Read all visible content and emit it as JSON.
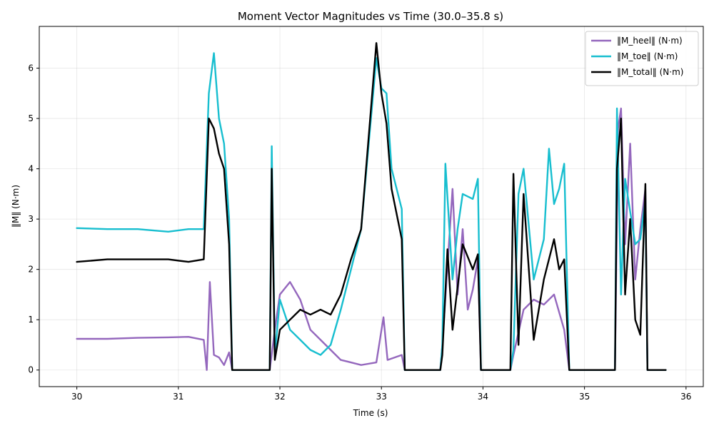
{
  "chart_data": {
    "type": "line",
    "title": "Moment Vector Magnitudes vs Time (30.0–35.8 s)",
    "xlabel": "Time (s)",
    "ylabel": "‖M‖ (N·m)",
    "xlim": [
      29.63,
      36.17
    ],
    "ylim": [
      -0.33,
      6.83
    ],
    "xticks": [
      30,
      31,
      32,
      33,
      34,
      35,
      36
    ],
    "yticks": [
      0,
      1,
      2,
      3,
      4,
      5,
      6
    ],
    "grid": true,
    "legend_position": "top-right",
    "series": [
      {
        "name": "‖M_heel‖ (N·m)",
        "color": "#9467bd",
        "points": [
          [
            30.0,
            0.62
          ],
          [
            30.3,
            0.62
          ],
          [
            30.6,
            0.64
          ],
          [
            30.9,
            0.65
          ],
          [
            31.1,
            0.66
          ],
          [
            31.25,
            0.6
          ],
          [
            31.28,
            0.0
          ],
          [
            31.31,
            1.75
          ],
          [
            31.35,
            0.3
          ],
          [
            31.4,
            0.25
          ],
          [
            31.45,
            0.1
          ],
          [
            31.5,
            0.35
          ],
          [
            31.53,
            0.0
          ],
          [
            31.9,
            0.0
          ],
          [
            31.95,
            0.8
          ],
          [
            32.0,
            1.5
          ],
          [
            32.1,
            1.75
          ],
          [
            32.2,
            1.4
          ],
          [
            32.3,
            0.8
          ],
          [
            32.4,
            0.6
          ],
          [
            32.5,
            0.4
          ],
          [
            32.6,
            0.2
          ],
          [
            32.7,
            0.15
          ],
          [
            32.8,
            0.1
          ],
          [
            32.95,
            0.15
          ],
          [
            33.02,
            1.05
          ],
          [
            33.06,
            0.2
          ],
          [
            33.2,
            0.3
          ],
          [
            33.23,
            0.0
          ],
          [
            33.58,
            0.0
          ],
          [
            33.6,
            0.5
          ],
          [
            33.7,
            3.6
          ],
          [
            33.75,
            1.5
          ],
          [
            33.8,
            2.8
          ],
          [
            33.85,
            1.2
          ],
          [
            33.9,
            1.6
          ],
          [
            33.95,
            2.2
          ],
          [
            33.98,
            0.0
          ],
          [
            34.27,
            0.0
          ],
          [
            34.3,
            0.3
          ],
          [
            34.4,
            1.2
          ],
          [
            34.5,
            1.4
          ],
          [
            34.6,
            1.3
          ],
          [
            34.7,
            1.5
          ],
          [
            34.8,
            0.8
          ],
          [
            34.85,
            0.0
          ],
          [
            35.3,
            0.0
          ],
          [
            35.33,
            4.8
          ],
          [
            35.36,
            5.2
          ],
          [
            35.4,
            2.5
          ],
          [
            35.45,
            4.5
          ],
          [
            35.5,
            1.8
          ],
          [
            35.55,
            2.8
          ],
          [
            35.6,
            3.6
          ],
          [
            35.62,
            0.0
          ],
          [
            35.8,
            0.0
          ]
        ]
      },
      {
        "name": "‖M_toe‖ (N·m)",
        "color": "#17becf",
        "points": [
          [
            30.0,
            2.82
          ],
          [
            30.3,
            2.8
          ],
          [
            30.6,
            2.8
          ],
          [
            30.9,
            2.75
          ],
          [
            31.1,
            2.8
          ],
          [
            31.25,
            2.8
          ],
          [
            31.3,
            5.5
          ],
          [
            31.35,
            6.3
          ],
          [
            31.4,
            5.0
          ],
          [
            31.45,
            4.5
          ],
          [
            31.5,
            3.0
          ],
          [
            31.53,
            0.0
          ],
          [
            31.9,
            0.0
          ],
          [
            31.92,
            4.45
          ],
          [
            31.95,
            0.3
          ],
          [
            32.0,
            1.4
          ],
          [
            32.1,
            0.8
          ],
          [
            32.2,
            0.6
          ],
          [
            32.3,
            0.4
          ],
          [
            32.4,
            0.3
          ],
          [
            32.5,
            0.5
          ],
          [
            32.6,
            1.2
          ],
          [
            32.7,
            2.0
          ],
          [
            32.8,
            2.8
          ],
          [
            32.95,
            6.2
          ],
          [
            33.0,
            5.6
          ],
          [
            33.05,
            5.5
          ],
          [
            33.1,
            4.0
          ],
          [
            33.2,
            3.2
          ],
          [
            33.23,
            0.0
          ],
          [
            33.58,
            0.0
          ],
          [
            33.6,
            0.5
          ],
          [
            33.63,
            4.1
          ],
          [
            33.7,
            1.8
          ],
          [
            33.75,
            2.8
          ],
          [
            33.8,
            3.5
          ],
          [
            33.9,
            3.4
          ],
          [
            33.95,
            3.8
          ],
          [
            33.98,
            0.0
          ],
          [
            34.27,
            0.0
          ],
          [
            34.3,
            0.4
          ],
          [
            34.35,
            3.5
          ],
          [
            34.4,
            4.0
          ],
          [
            34.5,
            1.8
          ],
          [
            34.6,
            2.6
          ],
          [
            34.65,
            4.4
          ],
          [
            34.7,
            3.3
          ],
          [
            34.75,
            3.6
          ],
          [
            34.8,
            4.1
          ],
          [
            34.85,
            0.0
          ],
          [
            35.3,
            0.0
          ],
          [
            35.32,
            5.2
          ],
          [
            35.36,
            1.5
          ],
          [
            35.4,
            3.8
          ],
          [
            35.5,
            2.5
          ],
          [
            35.55,
            2.6
          ],
          [
            35.6,
            3.4
          ],
          [
            35.62,
            0.0
          ],
          [
            35.8,
            0.0
          ]
        ]
      },
      {
        "name": "‖M_total‖ (N·m)",
        "color": "#000000",
        "points": [
          [
            30.0,
            2.15
          ],
          [
            30.3,
            2.2
          ],
          [
            30.6,
            2.2
          ],
          [
            30.9,
            2.2
          ],
          [
            31.1,
            2.15
          ],
          [
            31.25,
            2.2
          ],
          [
            31.3,
            5.0
          ],
          [
            31.35,
            4.8
          ],
          [
            31.4,
            4.3
          ],
          [
            31.45,
            4.0
          ],
          [
            31.5,
            2.5
          ],
          [
            31.53,
            0.0
          ],
          [
            31.9,
            0.0
          ],
          [
            31.92,
            4.0
          ],
          [
            31.95,
            0.2
          ],
          [
            32.0,
            0.8
          ],
          [
            32.1,
            1.0
          ],
          [
            32.2,
            1.2
          ],
          [
            32.3,
            1.1
          ],
          [
            32.4,
            1.2
          ],
          [
            32.5,
            1.1
          ],
          [
            32.6,
            1.5
          ],
          [
            32.7,
            2.2
          ],
          [
            32.8,
            2.8
          ],
          [
            32.95,
            6.5
          ],
          [
            33.0,
            5.5
          ],
          [
            33.05,
            4.9
          ],
          [
            33.1,
            3.6
          ],
          [
            33.2,
            2.6
          ],
          [
            33.23,
            0.0
          ],
          [
            33.58,
            0.0
          ],
          [
            33.6,
            0.3
          ],
          [
            33.65,
            2.4
          ],
          [
            33.7,
            0.8
          ],
          [
            33.8,
            2.5
          ],
          [
            33.9,
            2.0
          ],
          [
            33.95,
            2.3
          ],
          [
            33.98,
            0.0
          ],
          [
            34.27,
            0.0
          ],
          [
            34.3,
            3.9
          ],
          [
            34.35,
            0.5
          ],
          [
            34.4,
            3.5
          ],
          [
            34.5,
            0.6
          ],
          [
            34.6,
            1.8
          ],
          [
            34.7,
            2.6
          ],
          [
            34.75,
            2.0
          ],
          [
            34.8,
            2.2
          ],
          [
            34.85,
            0.0
          ],
          [
            35.3,
            0.0
          ],
          [
            35.32,
            4.0
          ],
          [
            35.36,
            5.0
          ],
          [
            35.4,
            1.5
          ],
          [
            35.45,
            3.0
          ],
          [
            35.5,
            1.0
          ],
          [
            35.55,
            0.7
          ],
          [
            35.6,
            3.7
          ],
          [
            35.62,
            0.0
          ],
          [
            35.8,
            0.0
          ]
        ]
      }
    ]
  }
}
